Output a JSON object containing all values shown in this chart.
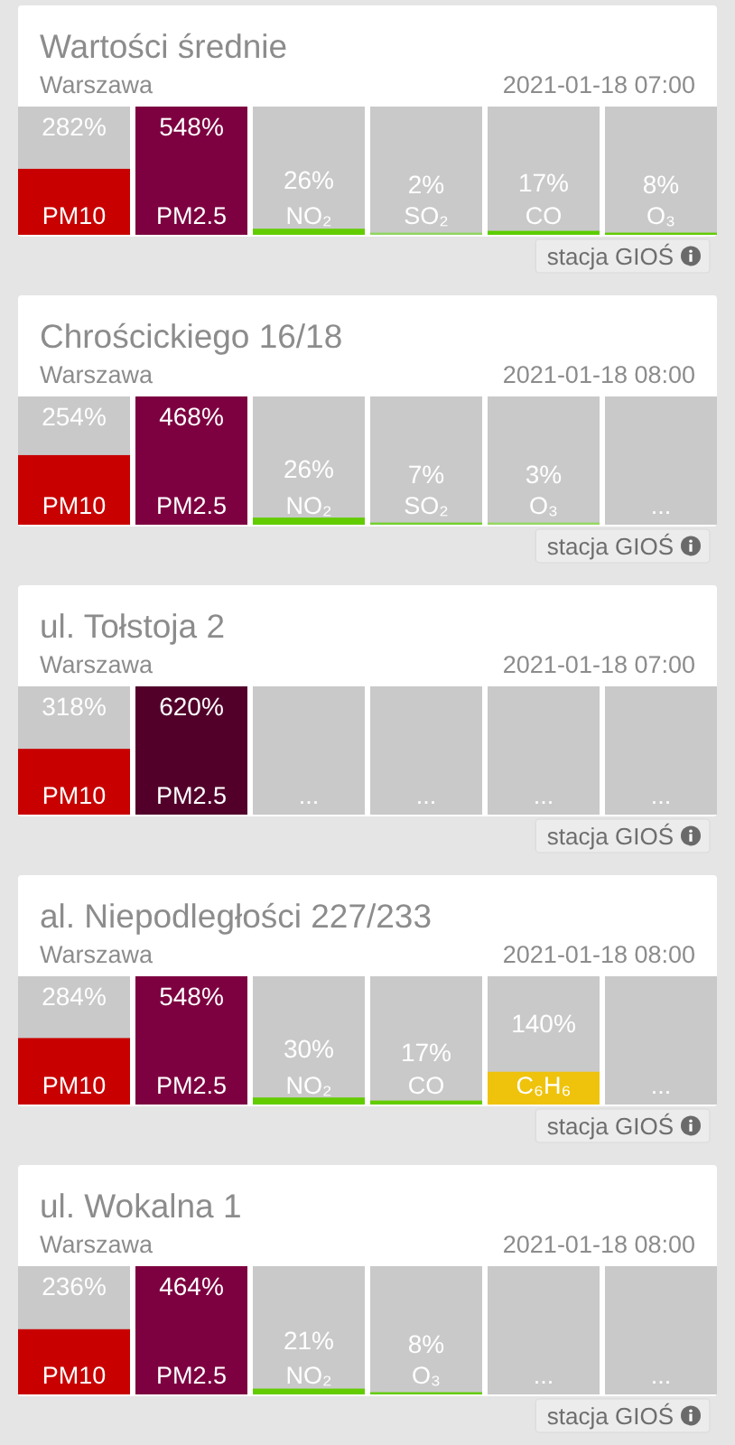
{
  "chart_data": [
    {
      "type": "bar",
      "title": "Wartości średnie",
      "subtitle": "Warszawa",
      "annotations": [
        "2021-01-18 07:00",
        "stacja GIOŚ"
      ],
      "categories": [
        "PM10",
        "PM2.5",
        "NO₂",
        "SO₂",
        "CO",
        "O₃"
      ],
      "values": [
        282,
        548,
        26,
        2,
        17,
        8
      ],
      "value_labels": [
        "282%",
        "548%",
        "26%",
        "2%",
        "17%",
        "8%"
      ],
      "colors": [
        "#c80000",
        "#7d0040",
        "#62cc00",
        "#8fd65e",
        "#5ccc00",
        "#62cc00"
      ],
      "tick_labels": "x"
    },
    {
      "type": "bar",
      "title": "Chrościckiego 16/18",
      "subtitle": "Warszawa",
      "annotations": [
        "2021-01-18 08:00",
        "stacja GIOŚ"
      ],
      "categories": [
        "PM10",
        "PM2.5",
        "NO₂",
        "SO₂",
        "O₃",
        "..."
      ],
      "values": [
        254,
        468,
        26,
        7,
        3,
        null
      ],
      "value_labels": [
        "254%",
        "468%",
        "26%",
        "7%",
        "3%",
        null
      ],
      "colors": [
        "#c80000",
        "#7d0040",
        "#62cc00",
        "#74d030",
        "#94d862",
        null
      ],
      "tick_labels": "x"
    },
    {
      "type": "bar",
      "title": "ul. Tołstoja 2",
      "subtitle": "Warszawa",
      "annotations": [
        "2021-01-18 07:00",
        "stacja GIOŚ"
      ],
      "categories": [
        "PM10",
        "PM2.5",
        "...",
        "...",
        "...",
        "..."
      ],
      "values": [
        318,
        620,
        null,
        null,
        null,
        null
      ],
      "value_labels": [
        "318%",
        "620%",
        null,
        null,
        null,
        null
      ],
      "colors": [
        "#c80000",
        "#52002a",
        null,
        null,
        null,
        null
      ],
      "tick_labels": "x"
    },
    {
      "type": "bar",
      "title": "al. Niepodległości 227/233",
      "subtitle": "Warszawa",
      "annotations": [
        "2021-01-18 08:00",
        "stacja GIOŚ"
      ],
      "categories": [
        "PM10",
        "PM2.5",
        "NO₂",
        "CO",
        "C₆H₆",
        "..."
      ],
      "values": [
        284,
        548,
        30,
        17,
        140,
        null
      ],
      "value_labels": [
        "284%",
        "548%",
        "30%",
        "17%",
        "140%",
        null
      ],
      "colors": [
        "#c80000",
        "#7d0040",
        "#62cc00",
        "#62cc00",
        "#efc30c",
        null
      ],
      "tick_labels": "x"
    },
    {
      "type": "bar",
      "title": "ul. Wokalna 1",
      "subtitle": "Warszawa",
      "annotations": [
        "2021-01-18 08:00",
        "stacja GIOŚ"
      ],
      "categories": [
        "PM10",
        "PM2.5",
        "NO₂",
        "O₃",
        "...",
        "..."
      ],
      "values": [
        236,
        464,
        21,
        8,
        null,
        null
      ],
      "value_labels": [
        "236%",
        "464%",
        "21%",
        "8%",
        null,
        null
      ],
      "colors": [
        "#c80000",
        "#7d0040",
        "#62cc00",
        "#62cc00",
        null,
        null
      ],
      "tick_labels": "x"
    }
  ]
}
